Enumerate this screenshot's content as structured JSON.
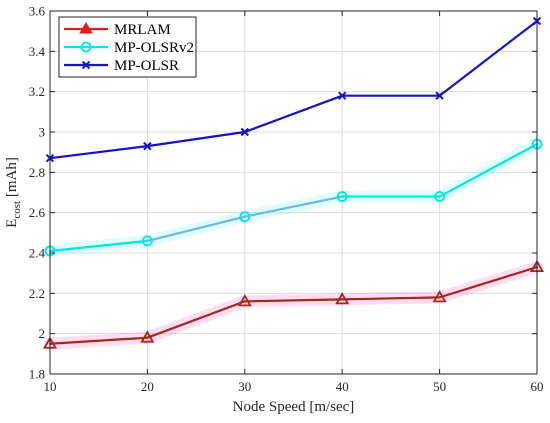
{
  "chart_data": {
    "type": "line",
    "x": [
      10,
      20,
      30,
      40,
      50,
      60
    ],
    "xlabel": "Node Speed [m/sec]",
    "ylabel_main": "E",
    "ylabel_sub": "cost",
    "ylabel_unit": " [mAh]",
    "xlim": [
      10,
      60
    ],
    "ylim": [
      1.8,
      3.6
    ],
    "xticks": [
      10,
      20,
      30,
      40,
      50,
      60
    ],
    "xtick_labels": [
      "10",
      "20",
      "30",
      "40",
      "50",
      "60"
    ],
    "yticks": [
      1.8,
      2.0,
      2.2,
      2.4,
      2.6,
      2.8,
      3.0,
      3.2,
      3.4,
      3.6
    ],
    "ytick_labels": [
      "1.8",
      "2",
      "2.2",
      "2.4",
      "2.6",
      "2.8",
      "3",
      "3.2",
      "3.4",
      "3.6"
    ],
    "grid": true,
    "legend_position": "top-left",
    "series": [
      {
        "name": "MRLAM",
        "color": "#a3281a",
        "legend_color": "#e41a1c",
        "marker": "triangle",
        "band_color": "#ff66cc",
        "values": [
          1.95,
          1.98,
          2.16,
          2.17,
          2.18,
          2.33
        ]
      },
      {
        "name": "MP-OLSRv2",
        "color": "#00e5e5",
        "mid_color": "#6fb5e6",
        "marker": "circle",
        "band_color": "#66ffff",
        "values": [
          2.41,
          2.46,
          2.58,
          2.68,
          2.68,
          2.94
        ]
      },
      {
        "name": "MP-OLSR",
        "color": "#1414c8",
        "marker": "x",
        "values": [
          2.87,
          2.93,
          3.0,
          3.18,
          3.18,
          3.55
        ]
      }
    ]
  }
}
